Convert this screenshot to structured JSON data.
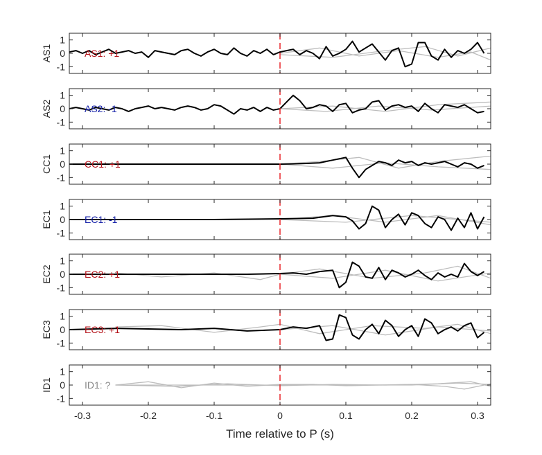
{
  "chart_data": {
    "type": "line",
    "xlabel": "Time relative to P (s)",
    "xlim": [
      -0.32,
      0.32
    ],
    "ylim": [
      -1.5,
      1.5
    ],
    "xticks": [
      "-0.3",
      "-0.2",
      "-0.1",
      "0",
      "0.2",
      "0.3",
      "0.1"
    ],
    "yticks": [
      "1",
      "0",
      "-1"
    ],
    "marker_time": 0,
    "colors": {
      "positive": "#b5141b",
      "negative": "#1420a8",
      "unknown": "#8a8a8a",
      "trace": "#000000",
      "background_traces": "#bdbdbd",
      "marker": "#e8262b"
    },
    "panels": [
      {
        "ylabel": "AS1",
        "label": "AS1: +1",
        "polarity": "positive",
        "trace": {
          "x": [
            -0.32,
            -0.31,
            -0.3,
            -0.29,
            -0.28,
            -0.27,
            -0.26,
            -0.25,
            -0.24,
            -0.23,
            -0.22,
            -0.21,
            -0.2,
            -0.19,
            -0.18,
            -0.17,
            -0.16,
            -0.15,
            -0.14,
            -0.13,
            -0.12,
            -0.11,
            -0.1,
            -0.09,
            -0.08,
            -0.07,
            -0.06,
            -0.05,
            -0.04,
            -0.03,
            -0.02,
            -0.01,
            0.0,
            0.01,
            0.02,
            0.03,
            0.04,
            0.05,
            0.06,
            0.07,
            0.08,
            0.09,
            0.1,
            0.11,
            0.12,
            0.13,
            0.14,
            0.15,
            0.16,
            0.17,
            0.18,
            0.19,
            0.2,
            0.21,
            0.22,
            0.23,
            0.24,
            0.25,
            0.26,
            0.27,
            0.28,
            0.29,
            0.3,
            0.31
          ],
          "y": [
            0.1,
            0.2,
            0.0,
            0.2,
            -0.1,
            0.1,
            0.3,
            0.0,
            0.1,
            0.2,
            0.0,
            0.1,
            -0.3,
            0.2,
            0.1,
            0.0,
            -0.1,
            0.2,
            0.3,
            0.0,
            -0.2,
            0.1,
            0.3,
            0.0,
            -0.1,
            0.4,
            0.0,
            -0.2,
            0.2,
            0.0,
            0.3,
            -0.1,
            0.1,
            0.2,
            0.3,
            -0.1,
            0.2,
            0.0,
            -0.4,
            0.5,
            -0.2,
            0.0,
            0.3,
            0.9,
            0.1,
            0.4,
            0.7,
            0.1,
            -0.5,
            0.2,
            0.4,
            -1.0,
            -0.8,
            0.8,
            0.8,
            -0.2,
            -0.5,
            0.3,
            -0.3,
            0.2,
            0.0,
            0.3,
            0.8,
            0.0
          ]
        },
        "background": [
          {
            "x": [
              0.0,
              0.08,
              0.16,
              0.22,
              0.27,
              0.32
            ],
            "y": [
              -0.1,
              -0.3,
              0.2,
              0.5,
              -0.2,
              0.4
            ]
          },
          {
            "x": [
              0.0,
              0.06,
              0.12,
              0.18,
              0.24,
              0.29,
              0.32
            ],
            "y": [
              0.0,
              0.4,
              -0.2,
              0.2,
              -0.3,
              0.1,
              -0.5
            ]
          }
        ]
      },
      {
        "ylabel": "AS2",
        "label": "AS2: -1",
        "polarity": "negative",
        "trace": {
          "x": [
            -0.32,
            -0.31,
            -0.3,
            -0.29,
            -0.28,
            -0.27,
            -0.26,
            -0.25,
            -0.24,
            -0.23,
            -0.22,
            -0.21,
            -0.2,
            -0.19,
            -0.18,
            -0.17,
            -0.16,
            -0.15,
            -0.14,
            -0.13,
            -0.12,
            -0.11,
            -0.1,
            -0.09,
            -0.08,
            -0.07,
            -0.06,
            -0.05,
            -0.04,
            -0.03,
            -0.02,
            -0.01,
            0.0,
            0.01,
            0.02,
            0.03,
            0.04,
            0.05,
            0.06,
            0.07,
            0.08,
            0.09,
            0.1,
            0.11,
            0.12,
            0.13,
            0.14,
            0.15,
            0.16,
            0.17,
            0.18,
            0.19,
            0.2,
            0.21,
            0.22,
            0.23,
            0.24,
            0.25,
            0.26,
            0.27,
            0.28,
            0.29,
            0.3,
            0.31
          ],
          "y": [
            0.0,
            0.1,
            0.0,
            -0.1,
            0.1,
            0.0,
            -0.1,
            0.1,
            0.0,
            -0.2,
            0.0,
            0.1,
            0.2,
            0.0,
            0.1,
            0.0,
            -0.1,
            0.1,
            0.2,
            0.1,
            -0.1,
            0.0,
            0.3,
            0.2,
            -0.1,
            -0.4,
            0.0,
            -0.1,
            0.1,
            -0.2,
            0.1,
            -0.1,
            0.0,
            0.5,
            1.0,
            0.6,
            0.0,
            0.1,
            0.3,
            0.2,
            -0.2,
            0.3,
            0.4,
            -0.3,
            -0.1,
            0.0,
            0.5,
            0.6,
            -0.1,
            0.2,
            0.3,
            0.1,
            0.2,
            -0.2,
            0.4,
            0.0,
            -0.3,
            0.3,
            0.2,
            0.1,
            0.3,
            0.0,
            -0.3,
            -0.2
          ]
        },
        "background": [
          {
            "x": [
              0.0,
              0.08,
              0.16,
              0.24,
              0.32
            ],
            "y": [
              0.0,
              0.2,
              -0.2,
              0.3,
              0.5
            ]
          },
          {
            "x": [
              0.0,
              0.07,
              0.15,
              0.23,
              0.32
            ],
            "y": [
              0.0,
              -0.2,
              0.2,
              -0.1,
              0.2
            ]
          }
        ]
      },
      {
        "ylabel": "CC1",
        "label": "CC1: +1",
        "polarity": "positive",
        "trace": {
          "x": [
            -0.32,
            -0.2,
            -0.1,
            0.0,
            0.02,
            0.04,
            0.06,
            0.08,
            0.1,
            0.11,
            0.12,
            0.13,
            0.14,
            0.15,
            0.16,
            0.17,
            0.18,
            0.19,
            0.2,
            0.21,
            0.22,
            0.23,
            0.24,
            0.25,
            0.26,
            0.27,
            0.28,
            0.29,
            0.3,
            0.31
          ],
          "y": [
            0.0,
            0.0,
            0.0,
            0.0,
            0.02,
            0.05,
            0.1,
            0.3,
            0.5,
            -0.3,
            -1.0,
            -0.4,
            -0.1,
            0.2,
            0.1,
            -0.1,
            0.3,
            0.1,
            0.2,
            -0.1,
            0.1,
            0.0,
            0.1,
            0.2,
            0.0,
            -0.2,
            0.1,
            0.0,
            -0.3,
            -0.1
          ]
        },
        "background": [
          {
            "x": [
              0.0,
              0.06,
              0.12,
              0.18,
              0.24,
              0.32
            ],
            "y": [
              0.0,
              0.2,
              0.5,
              -0.3,
              0.2,
              0.6
            ]
          },
          {
            "x": [
              0.0,
              0.08,
              0.16,
              0.24,
              0.32
            ],
            "y": [
              0.0,
              -0.3,
              0.1,
              -0.2,
              -0.4
            ]
          }
        ]
      },
      {
        "ylabel": "EC1",
        "label": "EC1: -1",
        "polarity": "negative",
        "trace": {
          "x": [
            -0.32,
            -0.2,
            -0.1,
            0.0,
            0.05,
            0.08,
            0.1,
            0.11,
            0.12,
            0.13,
            0.14,
            0.15,
            0.16,
            0.17,
            0.18,
            0.19,
            0.2,
            0.21,
            0.22,
            0.23,
            0.24,
            0.25,
            0.26,
            0.27,
            0.28,
            0.29,
            0.3,
            0.31
          ],
          "y": [
            0.0,
            0.0,
            0.0,
            0.05,
            0.1,
            0.3,
            0.2,
            -0.1,
            -0.7,
            -0.3,
            1.0,
            0.7,
            -0.6,
            0.0,
            0.4,
            -0.4,
            0.5,
            0.3,
            -0.3,
            -0.6,
            0.2,
            0.0,
            -0.8,
            0.1,
            -0.6,
            0.5,
            -0.7,
            0.2
          ]
        },
        "background": [
          {
            "x": [
              0.0,
              0.08,
              0.16,
              0.24,
              0.32
            ],
            "y": [
              0.0,
              0.3,
              -0.2,
              0.3,
              -0.4
            ]
          },
          {
            "x": [
              0.0,
              0.1,
              0.2,
              0.32
            ],
            "y": [
              0.0,
              -0.2,
              0.3,
              -0.2
            ]
          }
        ]
      },
      {
        "ylabel": "EC2",
        "label": "EC2: +1",
        "polarity": "positive",
        "trace": {
          "x": [
            -0.32,
            -0.2,
            -0.1,
            -0.05,
            0.0,
            0.02,
            0.04,
            0.06,
            0.08,
            0.09,
            0.1,
            0.11,
            0.12,
            0.13,
            0.14,
            0.15,
            0.16,
            0.17,
            0.18,
            0.19,
            0.2,
            0.21,
            0.22,
            0.23,
            0.24,
            0.25,
            0.26,
            0.27,
            0.28,
            0.29,
            0.3,
            0.31
          ],
          "y": [
            0.0,
            0.0,
            0.0,
            0.0,
            0.05,
            0.1,
            0.0,
            0.2,
            0.3,
            -1.0,
            -0.6,
            0.9,
            0.6,
            -0.2,
            -0.3,
            0.5,
            -0.4,
            0.3,
            0.1,
            -0.2,
            0.0,
            0.3,
            -0.1,
            -0.4,
            0.1,
            -0.2,
            0.0,
            -0.2,
            0.8,
            0.2,
            -0.1,
            0.2
          ]
        },
        "background": [
          {
            "x": [
              -0.25,
              -0.18,
              -0.1,
              -0.03,
              0.0,
              0.06,
              0.14,
              0.22,
              0.27,
              0.32
            ],
            "y": [
              0.1,
              -0.2,
              0.1,
              -0.4,
              0.0,
              0.4,
              -0.3,
              0.1,
              0.6,
              -0.3
            ]
          },
          {
            "x": [
              0.0,
              0.08,
              0.16,
              0.24,
              0.32
            ],
            "y": [
              0.0,
              -0.3,
              0.3,
              -0.5,
              0.1
            ]
          }
        ]
      },
      {
        "ylabel": "EC3",
        "label": "EC3: +1",
        "polarity": "positive",
        "trace": {
          "x": [
            -0.32,
            -0.25,
            -0.2,
            -0.15,
            -0.1,
            -0.05,
            0.0,
            0.02,
            0.04,
            0.06,
            0.07,
            0.08,
            0.09,
            0.1,
            0.11,
            0.12,
            0.13,
            0.14,
            0.15,
            0.16,
            0.17,
            0.18,
            0.19,
            0.2,
            0.21,
            0.22,
            0.23,
            0.24,
            0.25,
            0.26,
            0.27,
            0.28,
            0.29,
            0.3,
            0.31
          ],
          "y": [
            0.0,
            0.1,
            0.05,
            0.0,
            0.1,
            -0.1,
            0.0,
            0.2,
            0.1,
            0.3,
            -0.8,
            -0.7,
            1.1,
            0.9,
            -0.4,
            -0.7,
            0.0,
            0.4,
            -0.3,
            0.7,
            0.3,
            -0.5,
            0.0,
            0.3,
            -0.5,
            0.8,
            0.5,
            -0.3,
            0.0,
            0.2,
            -0.1,
            0.3,
            0.5,
            -0.6,
            -0.2
          ]
        },
        "background": [
          {
            "x": [
              -0.25,
              -0.18,
              -0.1,
              -0.03,
              0.0,
              0.06,
              0.14,
              0.22,
              0.27,
              0.32
            ],
            "y": [
              0.2,
              0.3,
              -0.2,
              0.2,
              0.4,
              -0.3,
              0.3,
              0.1,
              0.4,
              -0.3
            ]
          },
          {
            "x": [
              0.0,
              0.08,
              0.16,
              0.24,
              0.32
            ],
            "y": [
              0.0,
              0.3,
              -0.4,
              0.2,
              -0.1
            ]
          }
        ]
      },
      {
        "ylabel": "ID1",
        "label": "ID1: ?",
        "polarity": "unknown",
        "trace": null,
        "background": [
          {
            "x": [
              -0.25,
              -0.2,
              -0.15,
              -0.1,
              -0.05,
              0.0,
              0.05,
              0.1,
              0.15,
              0.2,
              0.25,
              0.28,
              0.32
            ],
            "y": [
              0.0,
              0.25,
              -0.2,
              0.15,
              -0.1,
              0.05,
              0.05,
              -0.05,
              0.0,
              0.05,
              -0.1,
              -0.3,
              0.1
            ]
          },
          {
            "x": [
              -0.25,
              -0.16,
              -0.08,
              0.0,
              0.08,
              0.16,
              0.24,
              0.29,
              0.32
            ],
            "y": [
              0.0,
              -0.1,
              0.1,
              -0.05,
              0.05,
              0.0,
              0.1,
              0.25,
              -0.1
            ]
          },
          {
            "x": [
              -0.25,
              0.0,
              0.2,
              0.27,
              0.32
            ],
            "y": [
              0.0,
              0.0,
              0.0,
              0.15,
              0.05
            ]
          }
        ]
      }
    ]
  }
}
